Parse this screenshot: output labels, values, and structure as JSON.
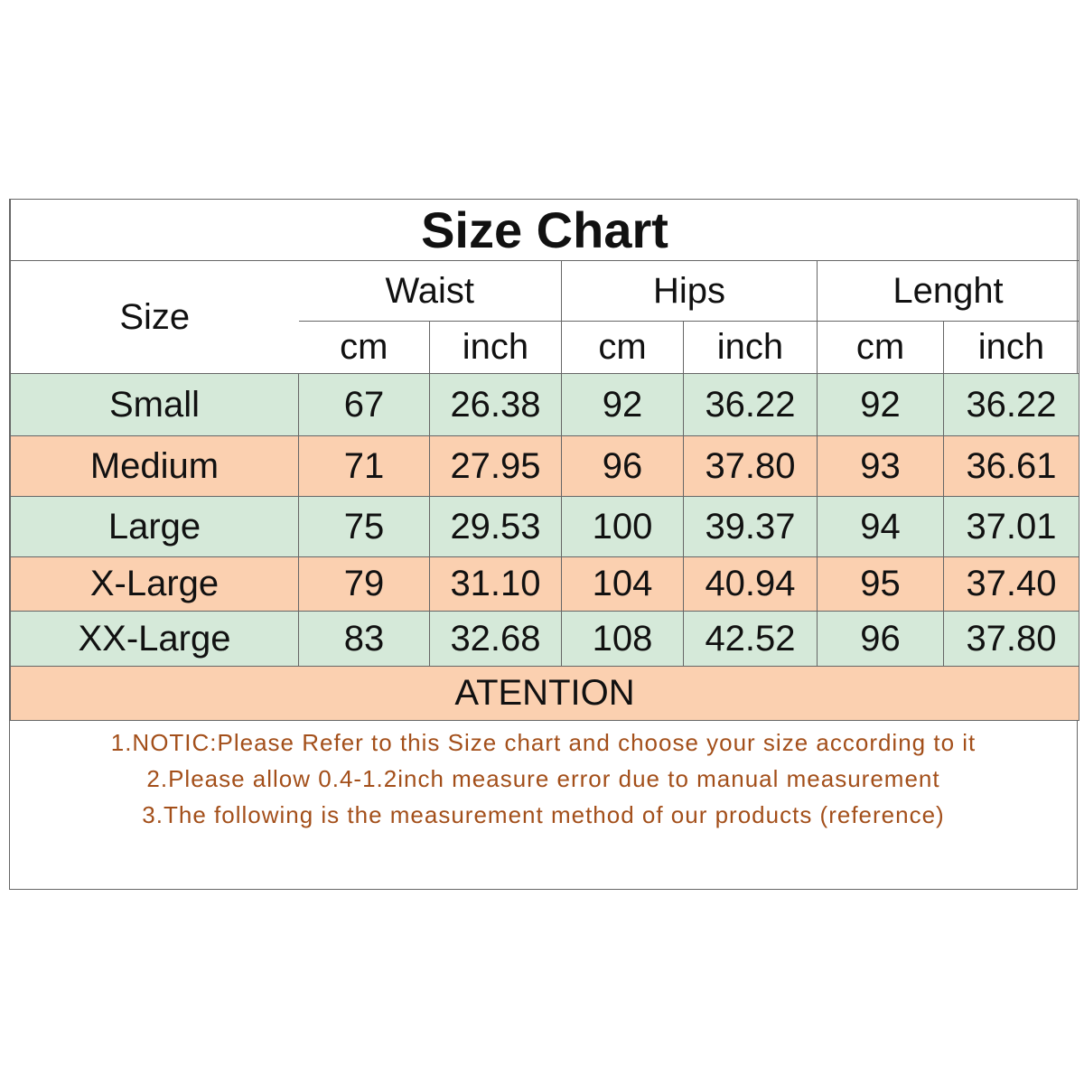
{
  "title": "Size Chart",
  "header": {
    "size": "Size",
    "groups": [
      "Waist",
      "Hips",
      "Lenght"
    ],
    "units": [
      "cm",
      "inch",
      "cm",
      "inch",
      "cm",
      "inch"
    ]
  },
  "table": {
    "rows": [
      [
        "Small",
        "67",
        "26.38",
        "92",
        "36.22",
        "92",
        "36.22"
      ],
      [
        "Medium",
        "71",
        "27.95",
        "96",
        "37.80",
        "93",
        "36.61"
      ],
      [
        "Large",
        "75",
        "29.53",
        "100",
        "39.37",
        "94",
        "37.01"
      ],
      [
        "X-Large",
        "79",
        "31.10",
        "104",
        "40.94",
        "95",
        "37.40"
      ],
      [
        "XX-Large",
        "83",
        "32.68",
        "108",
        "42.52",
        "96",
        "37.80"
      ]
    ]
  },
  "attention": "ATENTION",
  "notes": [
    "1.NOTIC:Please Refer to this Size chart and choose your size according to it",
    "2.Please allow 0.4-1.2inch measure error due to manual measurement",
    "3.The following is the measurement method of our products (reference)"
  ]
}
